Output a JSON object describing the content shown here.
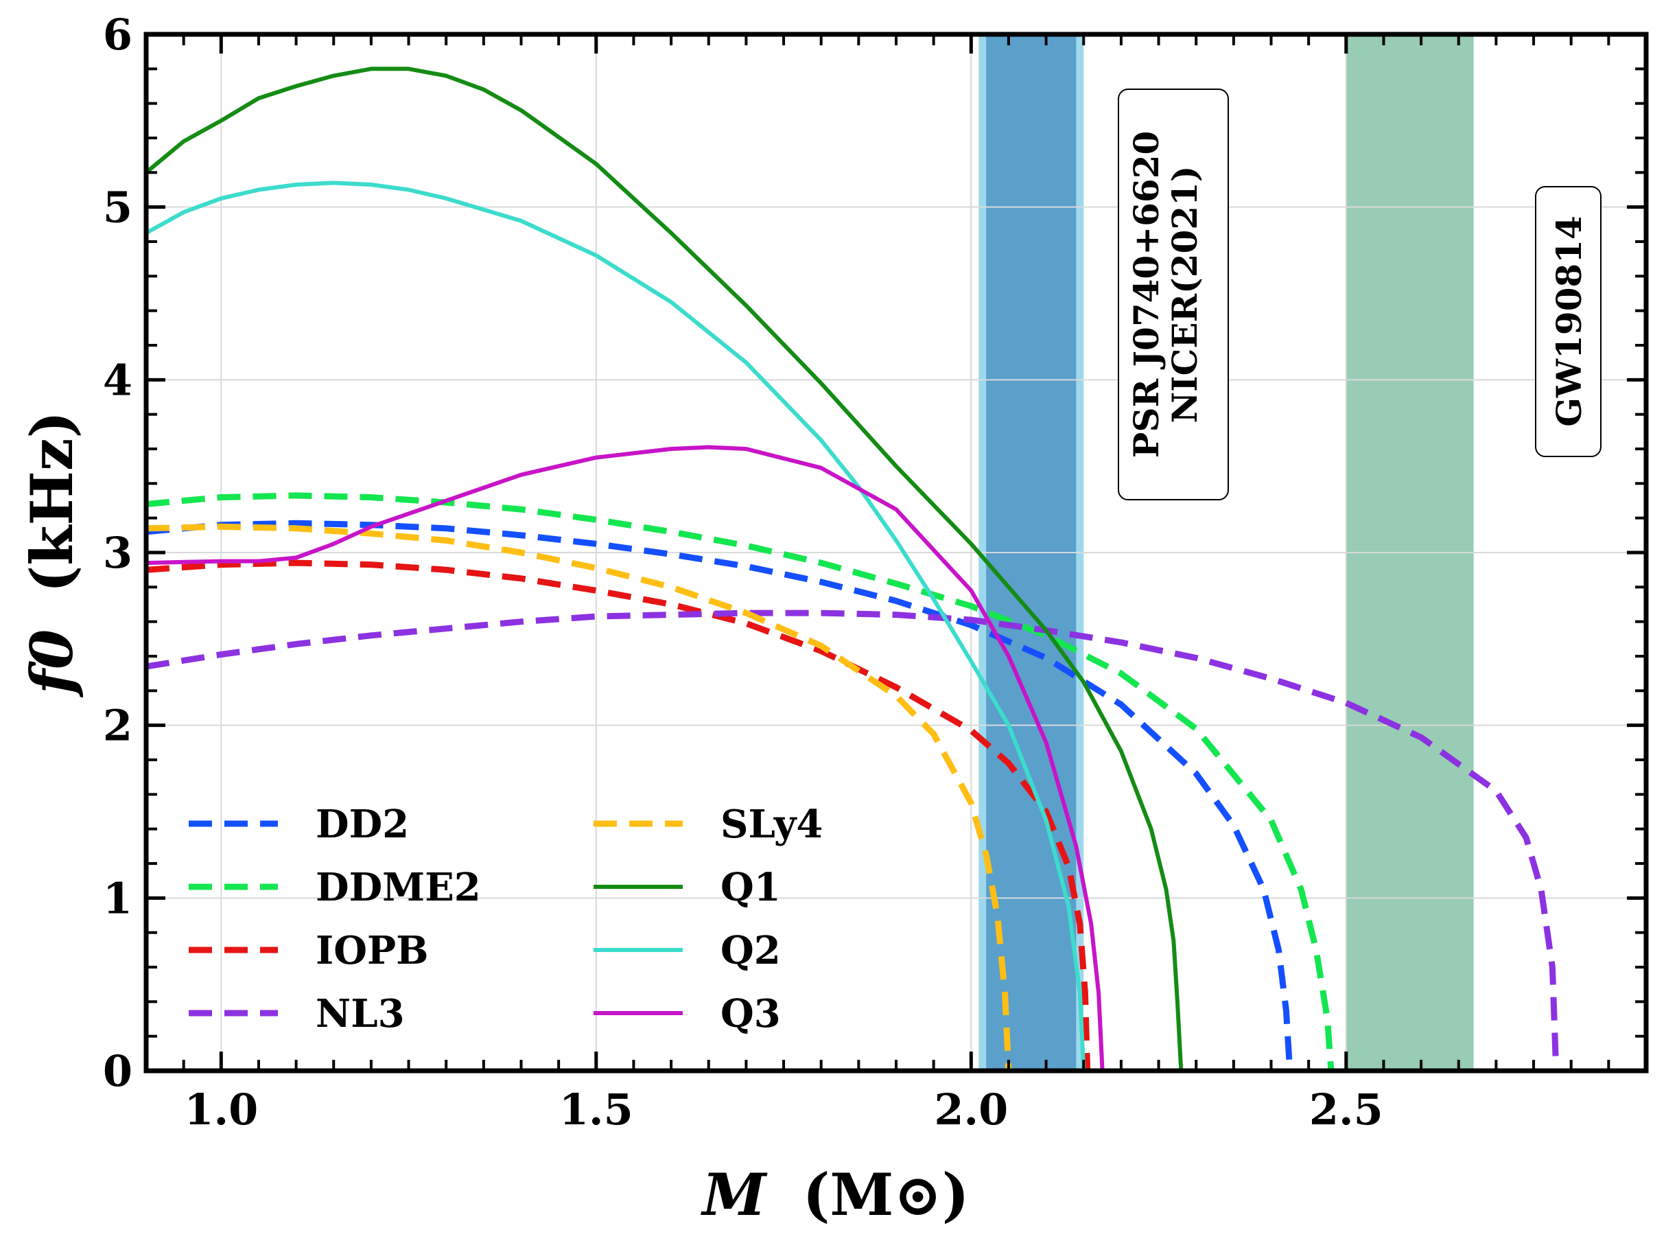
{
  "chart_data": {
    "type": "line",
    "title": "",
    "xlabel": "M",
    "xlabel_unit": "(M⊙)",
    "ylabel": "f0",
    "ylabel_unit": "(kHz)",
    "xlim": [
      0.9,
      2.9
    ],
    "ylim": [
      0,
      6
    ],
    "x_ticks": [
      1.0,
      1.5,
      2.0,
      2.5
    ],
    "x_tick_labels": [
      "1.0",
      "1.5",
      "2.0",
      "2.5"
    ],
    "y_ticks": [
      0,
      1,
      2,
      3,
      4,
      5,
      6
    ],
    "y_tick_labels": [
      "0",
      "1",
      "2",
      "3",
      "4",
      "5",
      "6"
    ],
    "grid": true,
    "legend_position": "bottom-left",
    "bands": [
      {
        "name": "PSR J0740+6620 NICER(2021)",
        "x_range": [
          2.01,
          2.15
        ],
        "color": "#9ed8ec"
      },
      {
        "name": "PSR J0740+6620 NICER(2021)",
        "x_range": [
          2.02,
          2.14
        ],
        "color": "#5b9fcb"
      },
      {
        "name": "GW190814",
        "x_range": [
          2.5,
          2.67
        ],
        "color": "#98ccb4"
      }
    ],
    "annotations": [
      {
        "lines": [
          "PSR J0740+6620",
          "NICER(2021)"
        ]
      },
      {
        "lines": [
          "GW190814"
        ]
      }
    ],
    "series": [
      {
        "name": "DD2",
        "style": "dashed",
        "color": "#1450ff",
        "x": [
          0.9,
          1.0,
          1.1,
          1.2,
          1.3,
          1.4,
          1.5,
          1.6,
          1.7,
          1.8,
          1.9,
          2.0,
          2.1,
          2.2,
          2.3,
          2.35,
          2.39,
          2.41,
          2.42,
          2.425
        ],
        "y": [
          3.12,
          3.16,
          3.17,
          3.16,
          3.14,
          3.1,
          3.05,
          2.99,
          2.92,
          2.83,
          2.72,
          2.58,
          2.39,
          2.12,
          1.72,
          1.42,
          1.05,
          0.7,
          0.35,
          0.0
        ]
      },
      {
        "name": "DDME2",
        "style": "dashed",
        "color": "#14e650",
        "x": [
          0.9,
          1.0,
          1.1,
          1.2,
          1.3,
          1.4,
          1.5,
          1.6,
          1.7,
          1.8,
          1.9,
          2.0,
          2.1,
          2.2,
          2.3,
          2.4,
          2.44,
          2.46,
          2.475,
          2.48
        ],
        "y": [
          3.28,
          3.32,
          3.33,
          3.32,
          3.29,
          3.25,
          3.19,
          3.12,
          3.04,
          2.94,
          2.82,
          2.69,
          2.52,
          2.3,
          1.98,
          1.45,
          1.05,
          0.7,
          0.3,
          0.0
        ]
      },
      {
        "name": "IOPB",
        "style": "dashed",
        "color": "#e61414",
        "x": [
          0.9,
          1.0,
          1.1,
          1.2,
          1.3,
          1.4,
          1.5,
          1.6,
          1.7,
          1.8,
          1.9,
          2.0,
          2.05,
          2.1,
          2.13,
          2.145,
          2.152,
          2.155
        ],
        "y": [
          2.9,
          2.93,
          2.94,
          2.93,
          2.9,
          2.85,
          2.78,
          2.7,
          2.59,
          2.43,
          2.22,
          1.97,
          1.78,
          1.5,
          1.18,
          0.85,
          0.45,
          0.0
        ]
      },
      {
        "name": "NL3",
        "style": "dashed",
        "color": "#8c32e1",
        "x": [
          0.9,
          1.0,
          1.1,
          1.2,
          1.3,
          1.4,
          1.5,
          1.6,
          1.7,
          1.8,
          1.9,
          2.0,
          2.1,
          2.2,
          2.3,
          2.4,
          2.5,
          2.6,
          2.7,
          2.74,
          2.76,
          2.775,
          2.78
        ],
        "y": [
          2.34,
          2.41,
          2.47,
          2.52,
          2.56,
          2.6,
          2.63,
          2.64,
          2.65,
          2.65,
          2.64,
          2.61,
          2.55,
          2.48,
          2.39,
          2.27,
          2.13,
          1.93,
          1.62,
          1.35,
          1.05,
          0.6,
          0.0
        ]
      },
      {
        "name": "SLy4",
        "style": "dashed",
        "color": "#ffbe14",
        "x": [
          0.9,
          1.0,
          1.1,
          1.2,
          1.3,
          1.4,
          1.5,
          1.6,
          1.7,
          1.8,
          1.9,
          1.95,
          2.0,
          2.02,
          2.035,
          2.045,
          2.05
        ],
        "y": [
          3.14,
          3.15,
          3.14,
          3.11,
          3.07,
          3.0,
          2.91,
          2.8,
          2.65,
          2.46,
          2.17,
          1.95,
          1.55,
          1.25,
          0.9,
          0.45,
          0.0
        ]
      },
      {
        "name": "Q1",
        "style": "solid",
        "color": "#148c14",
        "x": [
          0.9,
          0.95,
          1.0,
          1.05,
          1.1,
          1.15,
          1.2,
          1.25,
          1.3,
          1.35,
          1.4,
          1.5,
          1.6,
          1.7,
          1.8,
          1.9,
          2.0,
          2.1,
          2.15,
          2.2,
          2.24,
          2.26,
          2.27,
          2.275,
          2.28
        ],
        "y": [
          5.2,
          5.38,
          5.5,
          5.63,
          5.7,
          5.76,
          5.8,
          5.8,
          5.76,
          5.68,
          5.56,
          5.25,
          4.85,
          4.43,
          3.98,
          3.5,
          3.05,
          2.55,
          2.25,
          1.85,
          1.4,
          1.05,
          0.75,
          0.4,
          0.0
        ]
      },
      {
        "name": "Q2",
        "style": "solid",
        "color": "#3cdccc",
        "x": [
          0.9,
          0.95,
          1.0,
          1.05,
          1.1,
          1.15,
          1.2,
          1.25,
          1.3,
          1.4,
          1.5,
          1.6,
          1.7,
          1.8,
          1.85,
          1.9,
          1.95,
          2.0,
          2.05,
          2.1,
          2.13,
          2.145,
          2.15
        ],
        "y": [
          4.85,
          4.97,
          5.05,
          5.1,
          5.13,
          5.14,
          5.13,
          5.1,
          5.05,
          4.92,
          4.72,
          4.45,
          4.1,
          3.65,
          3.38,
          3.07,
          2.73,
          2.37,
          2.0,
          1.45,
          0.95,
          0.45,
          0.0
        ]
      },
      {
        "name": "Q3",
        "style": "solid",
        "color": "#c814c8",
        "x": [
          0.9,
          1.0,
          1.05,
          1.1,
          1.15,
          1.2,
          1.3,
          1.4,
          1.5,
          1.6,
          1.65,
          1.7,
          1.8,
          1.9,
          2.0,
          2.05,
          2.1,
          2.14,
          2.16,
          2.17,
          2.175
        ],
        "y": [
          2.94,
          2.95,
          2.95,
          2.97,
          3.05,
          3.15,
          3.3,
          3.45,
          3.55,
          3.6,
          3.61,
          3.6,
          3.49,
          3.25,
          2.78,
          2.4,
          1.9,
          1.3,
          0.85,
          0.45,
          0.0
        ]
      }
    ]
  }
}
